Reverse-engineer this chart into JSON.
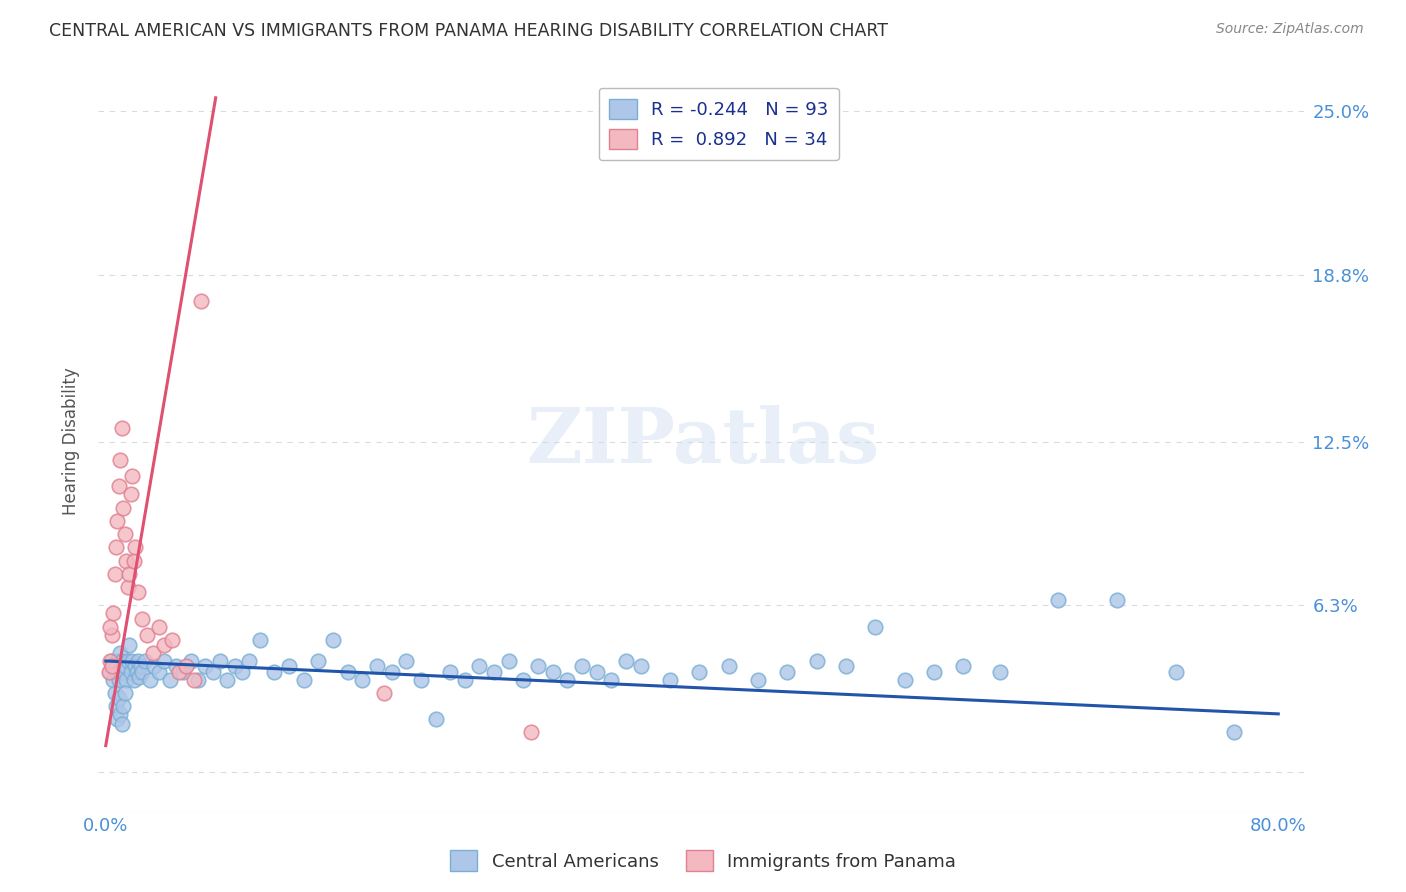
{
  "title": "CENTRAL AMERICAN VS IMMIGRANTS FROM PANAMA HEARING DISABILITY CORRELATION CHART",
  "source": "Source: ZipAtlas.com",
  "ylabel": "Hearing Disability",
  "xlim": [
    -0.005,
    0.82
  ],
  "ylim": [
    -0.015,
    0.265
  ],
  "yticks": [
    0.0,
    0.063,
    0.125,
    0.188,
    0.25
  ],
  "ytick_labels": [
    "",
    "6.3%",
    "12.5%",
    "18.8%",
    "25.0%"
  ],
  "xticks": [
    0.0,
    0.1,
    0.2,
    0.3,
    0.4,
    0.5,
    0.6,
    0.7,
    0.8
  ],
  "xtick_labels": [
    "0.0%",
    "",
    "",
    "",
    "",
    "",
    "",
    "",
    "80.0%"
  ],
  "watermark": "ZIPatlas",
  "legend_line1": "R = -0.244   N = 93",
  "legend_line2": "R =  0.892   N = 34",
  "legend_label1": "Central Americans",
  "legend_label2": "Immigrants from Panama",
  "blue_scatter_x": [
    0.003,
    0.004,
    0.005,
    0.006,
    0.007,
    0.008,
    0.009,
    0.01,
    0.011,
    0.012,
    0.013,
    0.014,
    0.015,
    0.016,
    0.017,
    0.018,
    0.019,
    0.02,
    0.021,
    0.022,
    0.023,
    0.024,
    0.025,
    0.027,
    0.03,
    0.033,
    0.036,
    0.04,
    0.044,
    0.048,
    0.053,
    0.058,
    0.063,
    0.068,
    0.073,
    0.078,
    0.083,
    0.088,
    0.093,
    0.098,
    0.105,
    0.115,
    0.125,
    0.135,
    0.145,
    0.155,
    0.165,
    0.175,
    0.185,
    0.195,
    0.205,
    0.215,
    0.225,
    0.235,
    0.245,
    0.255,
    0.265,
    0.275,
    0.285,
    0.295,
    0.305,
    0.315,
    0.325,
    0.335,
    0.345,
    0.355,
    0.365,
    0.385,
    0.405,
    0.425,
    0.445,
    0.465,
    0.485,
    0.505,
    0.525,
    0.545,
    0.565,
    0.585,
    0.61,
    0.65,
    0.69,
    0.73,
    0.77,
    0.006,
    0.007,
    0.008,
    0.009,
    0.01,
    0.011,
    0.012,
    0.013
  ],
  "blue_scatter_y": [
    0.038,
    0.042,
    0.035,
    0.04,
    0.038,
    0.042,
    0.035,
    0.045,
    0.042,
    0.038,
    0.04,
    0.035,
    0.042,
    0.048,
    0.038,
    0.042,
    0.035,
    0.04,
    0.038,
    0.042,
    0.036,
    0.04,
    0.038,
    0.042,
    0.035,
    0.04,
    0.038,
    0.042,
    0.035,
    0.04,
    0.038,
    0.042,
    0.035,
    0.04,
    0.038,
    0.042,
    0.035,
    0.04,
    0.038,
    0.042,
    0.05,
    0.038,
    0.04,
    0.035,
    0.042,
    0.05,
    0.038,
    0.035,
    0.04,
    0.038,
    0.042,
    0.035,
    0.02,
    0.038,
    0.035,
    0.04,
    0.038,
    0.042,
    0.035,
    0.04,
    0.038,
    0.035,
    0.04,
    0.038,
    0.035,
    0.042,
    0.04,
    0.035,
    0.038,
    0.04,
    0.035,
    0.038,
    0.042,
    0.04,
    0.055,
    0.035,
    0.038,
    0.04,
    0.038,
    0.065,
    0.065,
    0.038,
    0.015,
    0.03,
    0.025,
    0.02,
    0.028,
    0.022,
    0.018,
    0.025,
    0.03
  ],
  "pink_scatter_x": [
    0.002,
    0.003,
    0.004,
    0.005,
    0.006,
    0.007,
    0.008,
    0.009,
    0.01,
    0.011,
    0.012,
    0.013,
    0.014,
    0.015,
    0.016,
    0.017,
    0.018,
    0.019,
    0.02,
    0.022,
    0.025,
    0.028,
    0.032,
    0.036,
    0.04,
    0.045,
    0.05,
    0.055,
    0.06,
    0.065,
    0.003,
    0.004,
    0.19,
    0.29
  ],
  "pink_scatter_y": [
    0.038,
    0.042,
    0.052,
    0.06,
    0.075,
    0.085,
    0.095,
    0.108,
    0.118,
    0.13,
    0.1,
    0.09,
    0.08,
    0.07,
    0.075,
    0.105,
    0.112,
    0.08,
    0.085,
    0.068,
    0.058,
    0.052,
    0.045,
    0.055,
    0.048,
    0.05,
    0.038,
    0.04,
    0.035,
    0.178,
    0.055,
    0.04,
    0.03,
    0.015
  ],
  "blue_line_x0": 0.0,
  "blue_line_x1": 0.8,
  "blue_line_y0": 0.042,
  "blue_line_y1": 0.022,
  "pink_line_x0": 0.0,
  "pink_line_x1": 0.075,
  "pink_line_y0": 0.01,
  "pink_line_y1": 0.255,
  "background_color": "#ffffff",
  "grid_color": "#cccccc",
  "tick_color": "#4a90d9",
  "title_color": "#333333",
  "scatter_blue_color": "#aec6e8",
  "scatter_blue_edge": "#7aafd4",
  "scatter_pink_color": "#f4b8c1",
  "scatter_pink_edge": "#e08090",
  "line_blue_color": "#2255aa",
  "line_pink_color": "#e05070"
}
